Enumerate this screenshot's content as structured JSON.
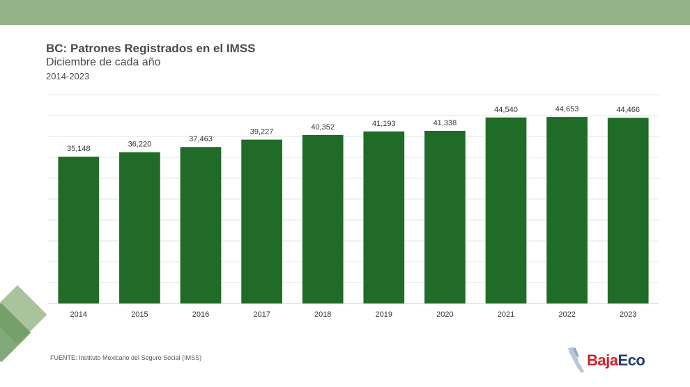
{
  "header": {
    "title": "BC: Patrones Registrados en el IMSS",
    "subtitle": "Diciembre de cada año",
    "period": "2014-2023"
  },
  "footer": {
    "source": "FUENTE: Instituto Mexicano del Seguro Social (IMSS)"
  },
  "logo": {
    "part1": "Baja",
    "part2": "Eco",
    "icon": "baja-california-map-icon"
  },
  "colors": {
    "bar": "#1f6b27",
    "band": "#95b38a",
    "grid": "#e3e3e3",
    "label": "#333333"
  },
  "chart_data": {
    "type": "bar",
    "categories": [
      "2014",
      "2015",
      "2016",
      "2017",
      "2018",
      "2019",
      "2020",
      "2021",
      "2022",
      "2023"
    ],
    "values": [
      35148,
      36220,
      37463,
      39227,
      40352,
      41193,
      41338,
      44540,
      44653,
      44466
    ],
    "data_labels": [
      "35,148",
      "36,220",
      "37,463",
      "39,227",
      "40,352",
      "41,193",
      "41,338",
      "44,540",
      "44,653",
      "44,466"
    ],
    "title": "BC: Patrones Registrados en el IMSS",
    "subtitle": "Diciembre de cada año",
    "ylim": [
      0,
      50000
    ],
    "grid": true,
    "legend": false,
    "y_axis_labels_shown": false
  }
}
